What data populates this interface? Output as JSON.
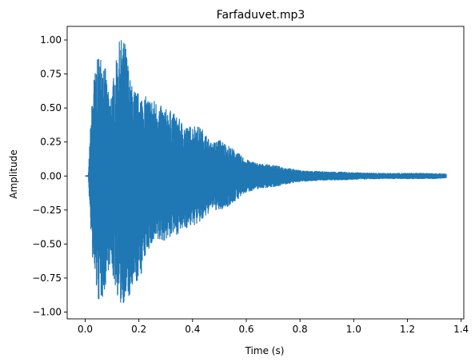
{
  "chart_data": {
    "type": "line",
    "title": "Farfaduvet.mp3",
    "xlabel": "Time (s)",
    "ylabel": "Amplitude",
    "xlim": [
      -0.067,
      1.41
    ],
    "ylim": [
      -1.05,
      1.1
    ],
    "x_ticks": [
      0.0,
      0.2,
      0.4,
      0.6,
      0.8,
      1.0,
      1.2,
      1.4
    ],
    "x_tick_labels": [
      "0.0",
      "0.2",
      "0.4",
      "0.6",
      "0.8",
      "1.0",
      "1.2",
      "1.4"
    ],
    "y_ticks": [
      -1.0,
      -0.75,
      -0.5,
      -0.25,
      0.0,
      0.25,
      0.5,
      0.75,
      1.0
    ],
    "y_tick_labels": [
      "−1.00",
      "−0.75",
      "−0.50",
      "−0.25",
      "0.00",
      "0.25",
      "0.50",
      "0.75",
      "1.00"
    ],
    "grid": false,
    "series": [
      {
        "color": "#1f77b4",
        "duration_s": 1.345,
        "envelope": {
          "t": [
            0.0,
            0.012,
            0.018,
            0.03,
            0.05,
            0.07,
            0.09,
            0.11,
            0.13,
            0.15,
            0.17,
            0.19,
            0.21,
            0.23,
            0.26,
            0.29,
            0.32,
            0.35,
            0.38,
            0.41,
            0.44,
            0.47,
            0.5,
            0.55,
            0.6,
            0.65,
            0.7,
            0.75,
            0.8,
            0.85,
            0.9,
            0.95,
            1.0,
            1.1,
            1.2,
            1.3,
            1.345
          ],
          "max": [
            0.0,
            0.005,
            0.3,
            0.7,
            0.9,
            0.88,
            0.55,
            0.78,
            1.02,
            0.98,
            0.68,
            0.62,
            0.6,
            0.58,
            0.56,
            0.5,
            0.48,
            0.42,
            0.36,
            0.38,
            0.34,
            0.24,
            0.27,
            0.2,
            0.12,
            0.09,
            0.08,
            0.06,
            0.04,
            0.035,
            0.03,
            0.03,
            0.025,
            0.02,
            0.02,
            0.02,
            0.015
          ],
          "min": [
            0.0,
            -0.005,
            -0.3,
            -0.7,
            -0.94,
            -0.88,
            -0.65,
            -0.8,
            -0.96,
            -0.92,
            -0.9,
            -0.8,
            -0.72,
            -0.55,
            -0.5,
            -0.48,
            -0.45,
            -0.42,
            -0.38,
            -0.36,
            -0.33,
            -0.24,
            -0.26,
            -0.2,
            -0.12,
            -0.09,
            -0.08,
            -0.06,
            -0.04,
            -0.035,
            -0.03,
            -0.03,
            -0.025,
            -0.02,
            -0.02,
            -0.02,
            -0.015
          ]
        }
      }
    ]
  }
}
